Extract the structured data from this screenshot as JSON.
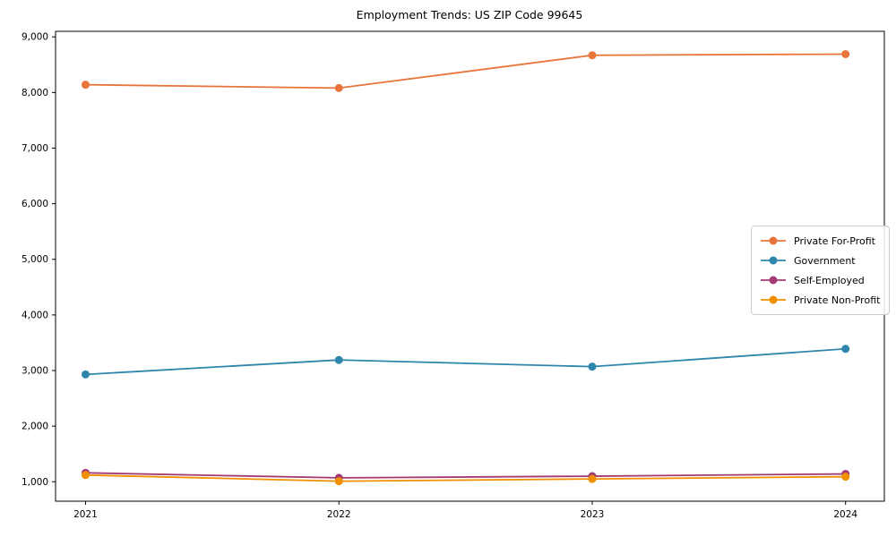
{
  "chart_data": {
    "type": "line",
    "title": "Employment Trends: US ZIP Code 99645",
    "x": [
      2021,
      2022,
      2023,
      2024
    ],
    "xtick_labels": [
      "2021",
      "2022",
      "2023",
      "2024"
    ],
    "series": [
      {
        "name": "Private For-Profit",
        "color": "#E8743B",
        "values": [
          8140,
          8080,
          8670,
          8690
        ]
      },
      {
        "name": "Government",
        "color": "#2E86AB",
        "values": [
          2930,
          3190,
          3070,
          3390
        ]
      },
      {
        "name": "Self-Employed",
        "color": "#A23B72",
        "values": [
          1160,
          1070,
          1100,
          1140
        ]
      },
      {
        "name": "Private Non-Profit",
        "color": "#F18F01",
        "values": [
          1120,
          1010,
          1050,
          1090
        ]
      }
    ],
    "xlabel": "",
    "ylabel": "",
    "ylim": [
      650,
      9100
    ],
    "yticks": [
      1000,
      2000,
      3000,
      4000,
      5000,
      6000,
      7000,
      8000,
      9000
    ],
    "ytick_labels": [
      "1,000",
      "2,000",
      "3,000",
      "4,000",
      "5,000",
      "6,000",
      "7,000",
      "8,000",
      "9,000"
    ],
    "grid": false,
    "legend_position": "center-right",
    "marker": "circle",
    "background": "#ffffff",
    "spine_color": "#000000"
  }
}
